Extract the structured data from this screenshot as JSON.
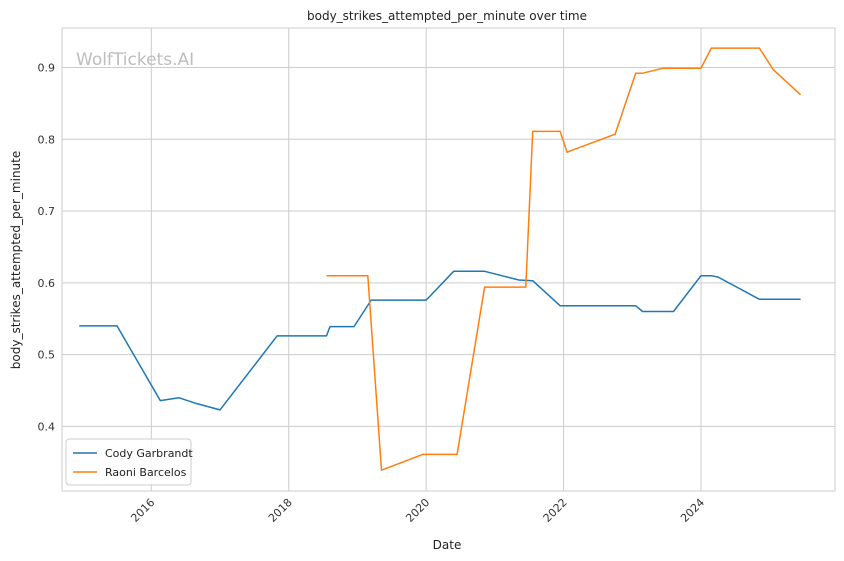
{
  "chart_data": {
    "type": "line",
    "title": "body_strikes_attempted_per_minute over time",
    "xlabel": "Date",
    "ylabel": "body_strikes_attempted_per_minute",
    "watermark": "WolfTickets.AI",
    "xlim": [
      2014.7,
      2025.95
    ],
    "ylim": [
      0.31,
      0.955
    ],
    "x_ticks": [
      2016,
      2018,
      2020,
      2022,
      2024
    ],
    "x_tick_labels": [
      "2016",
      "2018",
      "2020",
      "2022",
      "2024"
    ],
    "y_ticks": [
      0.4,
      0.5,
      0.6,
      0.7,
      0.8,
      0.9
    ],
    "y_tick_labels": [
      "0.4",
      "0.5",
      "0.6",
      "0.7",
      "0.8",
      "0.9"
    ],
    "grid": true,
    "legend_position": "lower-left",
    "series": [
      {
        "name": "Cody Garbrandt",
        "color": "#1f77b4",
        "x": [
          2014.95,
          2015.5,
          2016.13,
          2016.4,
          2016.65,
          2017.0,
          2017.83,
          2018.55,
          2018.6,
          2018.95,
          2019.2,
          2019.85,
          2020.0,
          2020.4,
          2020.85,
          2021.35,
          2021.55,
          2021.95,
          2022.2,
          2023.05,
          2023.15,
          2023.6,
          2024.0,
          2024.15,
          2024.25,
          2024.85,
          2025.45
        ],
        "y": [
          0.54,
          0.54,
          0.436,
          0.44,
          0.432,
          0.423,
          0.526,
          0.526,
          0.539,
          0.539,
          0.576,
          0.576,
          0.576,
          0.616,
          0.616,
          0.604,
          0.603,
          0.568,
          0.568,
          0.568,
          0.56,
          0.56,
          0.61,
          0.61,
          0.608,
          0.577,
          0.577
        ]
      },
      {
        "name": "Raoni Barcelos",
        "color": "#ff7f0e",
        "x": [
          2018.55,
          2019.15,
          2019.35,
          2019.95,
          2020.45,
          2020.85,
          2021.45,
          2021.55,
          2021.95,
          2022.05,
          2022.75,
          2023.05,
          2023.15,
          2023.45,
          2024.0,
          2024.15,
          2024.85,
          2025.05,
          2025.45
        ],
        "y": [
          0.61,
          0.61,
          0.339,
          0.361,
          0.361,
          0.594,
          0.594,
          0.811,
          0.811,
          0.782,
          0.807,
          0.892,
          0.892,
          0.899,
          0.899,
          0.927,
          0.927,
          0.897,
          0.862
        ]
      }
    ]
  }
}
